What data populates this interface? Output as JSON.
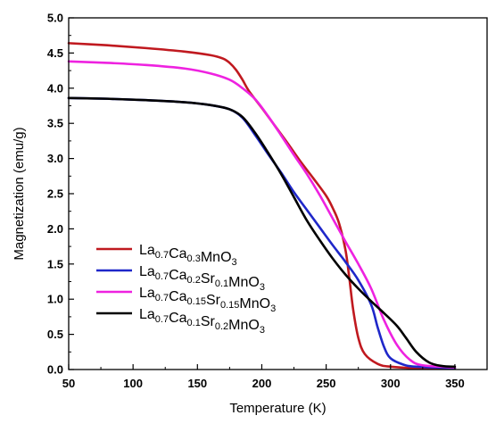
{
  "chart_data": {
    "type": "line",
    "xlabel": "Temperature (K)",
    "ylabel": "Magnetization (emu/g)",
    "xlim": [
      50,
      375
    ],
    "ylim": [
      0,
      5.0
    ],
    "x_ticks": [
      50,
      100,
      150,
      200,
      250,
      300,
      350
    ],
    "y_ticks": [
      0.0,
      0.5,
      1.0,
      1.5,
      2.0,
      2.5,
      3.0,
      3.5,
      4.0,
      4.5,
      5.0
    ],
    "legend_position": "lower-left",
    "grid": false,
    "series": [
      {
        "legend": [
          {
            "t": "La"
          },
          {
            "t": "0.7",
            "sub": true
          },
          {
            "t": "Ca"
          },
          {
            "t": "0.3",
            "sub": true
          },
          {
            "t": "MnO"
          },
          {
            "t": "3",
            "sub": true
          }
        ],
        "color": "#c0191f",
        "points": [
          [
            50,
            4.64
          ],
          [
            80,
            4.61
          ],
          [
            110,
            4.57
          ],
          [
            140,
            4.52
          ],
          [
            160,
            4.47
          ],
          [
            170,
            4.42
          ],
          [
            175,
            4.36
          ],
          [
            180,
            4.26
          ],
          [
            185,
            4.12
          ],
          [
            190,
            3.96
          ],
          [
            200,
            3.72
          ],
          [
            210,
            3.47
          ],
          [
            220,
            3.22
          ],
          [
            230,
            2.96
          ],
          [
            240,
            2.72
          ],
          [
            250,
            2.47
          ],
          [
            255,
            2.3
          ],
          [
            260,
            2.08
          ],
          [
            265,
            1.7
          ],
          [
            268,
            1.3
          ],
          [
            271,
            0.85
          ],
          [
            275,
            0.45
          ],
          [
            280,
            0.22
          ],
          [
            290,
            0.08
          ],
          [
            300,
            0.04
          ],
          [
            320,
            0.02
          ],
          [
            350,
            0.02
          ]
        ]
      },
      {
        "legend": [
          {
            "t": "La"
          },
          {
            "t": "0.7",
            "sub": true
          },
          {
            "t": "Ca"
          },
          {
            "t": "0.2",
            "sub": true
          },
          {
            "t": "Sr"
          },
          {
            "t": "0.1",
            "sub": true
          },
          {
            "t": "MnO"
          },
          {
            "t": "3",
            "sub": true
          }
        ],
        "color": "#1f27c9",
        "points": [
          [
            50,
            3.86
          ],
          [
            80,
            3.85
          ],
          [
            110,
            3.83
          ],
          [
            140,
            3.8
          ],
          [
            160,
            3.76
          ],
          [
            175,
            3.7
          ],
          [
            185,
            3.58
          ],
          [
            195,
            3.33
          ],
          [
            205,
            3.06
          ],
          [
            215,
            2.8
          ],
          [
            225,
            2.52
          ],
          [
            235,
            2.27
          ],
          [
            245,
            2.02
          ],
          [
            255,
            1.77
          ],
          [
            265,
            1.53
          ],
          [
            275,
            1.27
          ],
          [
            285,
            0.92
          ],
          [
            290,
            0.6
          ],
          [
            295,
            0.32
          ],
          [
            300,
            0.16
          ],
          [
            310,
            0.07
          ],
          [
            320,
            0.04
          ],
          [
            350,
            0.02
          ]
        ]
      },
      {
        "legend": [
          {
            "t": "La"
          },
          {
            "t": "0.7",
            "sub": true
          },
          {
            "t": "Ca"
          },
          {
            "t": "0.15",
            "sub": true
          },
          {
            "t": "Sr"
          },
          {
            "t": "0.15",
            "sub": true
          },
          {
            "t": "MnO"
          },
          {
            "t": "3",
            "sub": true
          }
        ],
        "color": "#ee22e0",
        "points": [
          [
            50,
            4.38
          ],
          [
            80,
            4.36
          ],
          [
            110,
            4.33
          ],
          [
            140,
            4.28
          ],
          [
            160,
            4.21
          ],
          [
            175,
            4.12
          ],
          [
            185,
            4.0
          ],
          [
            195,
            3.84
          ],
          [
            205,
            3.6
          ],
          [
            215,
            3.33
          ],
          [
            225,
            3.05
          ],
          [
            235,
            2.78
          ],
          [
            245,
            2.48
          ],
          [
            255,
            2.15
          ],
          [
            265,
            1.82
          ],
          [
            275,
            1.5
          ],
          [
            285,
            1.15
          ],
          [
            295,
            0.7
          ],
          [
            305,
            0.35
          ],
          [
            315,
            0.14
          ],
          [
            325,
            0.06
          ],
          [
            350,
            0.03
          ]
        ]
      },
      {
        "legend": [
          {
            "t": "La"
          },
          {
            "t": "0.7",
            "sub": true
          },
          {
            "t": "Ca"
          },
          {
            "t": "0.1",
            "sub": true
          },
          {
            "t": "Sr"
          },
          {
            "t": "0.2",
            "sub": true
          },
          {
            "t": "MnO"
          },
          {
            "t": "3",
            "sub": true
          }
        ],
        "color": "#000000",
        "points": [
          [
            50,
            3.86
          ],
          [
            80,
            3.85
          ],
          [
            110,
            3.83
          ],
          [
            140,
            3.8
          ],
          [
            160,
            3.76
          ],
          [
            175,
            3.7
          ],
          [
            185,
            3.59
          ],
          [
            195,
            3.36
          ],
          [
            205,
            3.08
          ],
          [
            215,
            2.78
          ],
          [
            225,
            2.45
          ],
          [
            235,
            2.12
          ],
          [
            245,
            1.84
          ],
          [
            255,
            1.58
          ],
          [
            265,
            1.35
          ],
          [
            275,
            1.15
          ],
          [
            285,
            0.97
          ],
          [
            295,
            0.8
          ],
          [
            305,
            0.62
          ],
          [
            312,
            0.45
          ],
          [
            320,
            0.25
          ],
          [
            330,
            0.1
          ],
          [
            340,
            0.05
          ],
          [
            350,
            0.04
          ]
        ]
      }
    ]
  }
}
